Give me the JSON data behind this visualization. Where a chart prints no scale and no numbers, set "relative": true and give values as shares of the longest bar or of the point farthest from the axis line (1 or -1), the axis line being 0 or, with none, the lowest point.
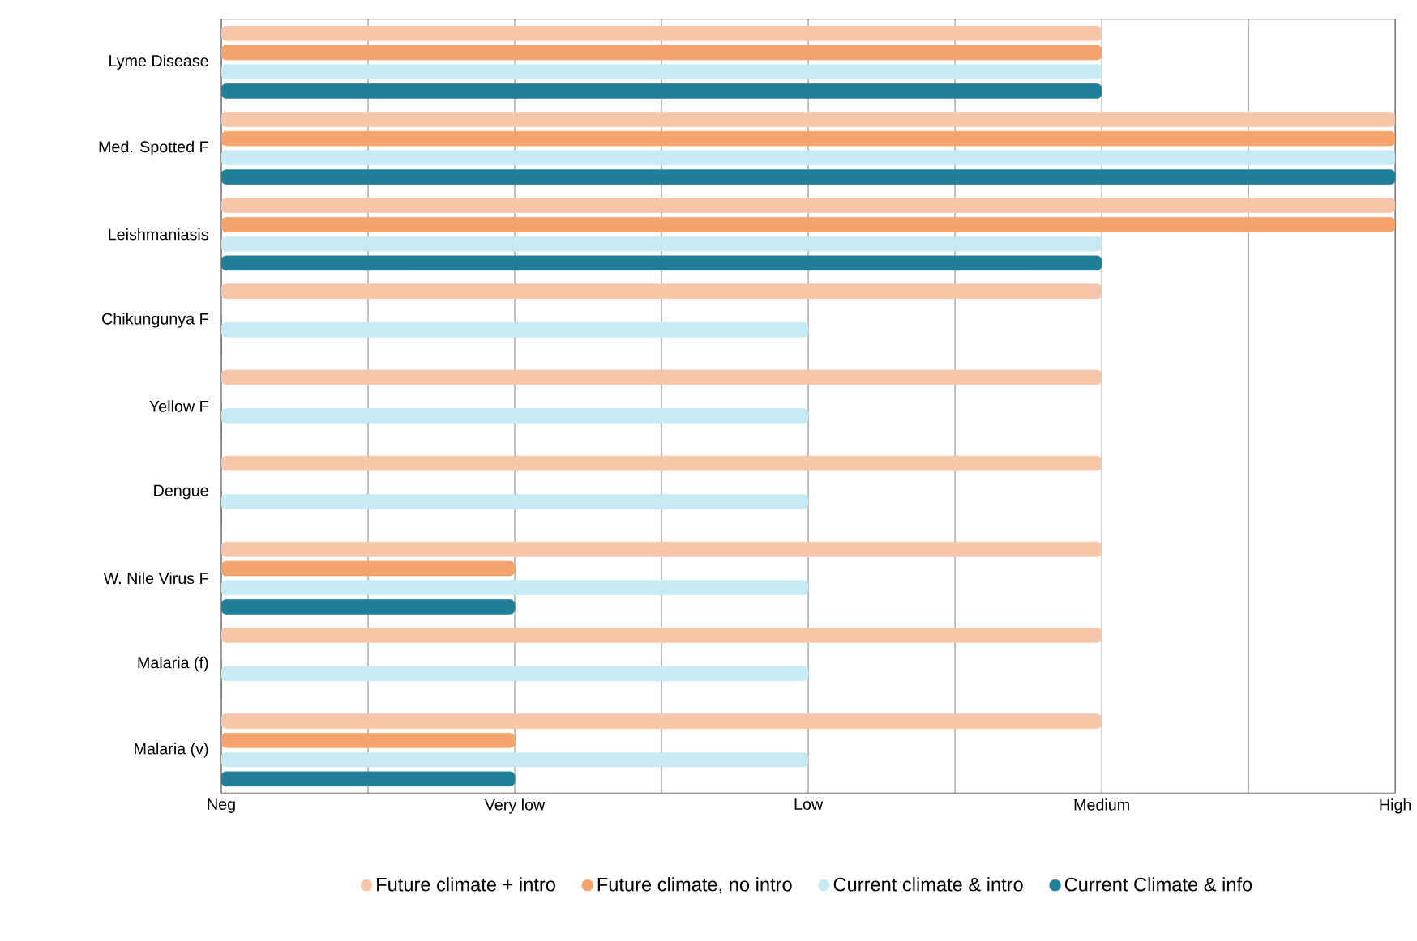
{
  "chart_data": {
    "type": "bar",
    "orientation": "horizontal",
    "relative": true,
    "categories": [
      "Lyme Disease",
      "Med. Spotted F",
      "Leishmaniasis",
      "Chikungunya F",
      "Yellow F",
      "Dengue",
      "W. Nile Virus F",
      "Malaria (f)",
      "Malaria (v)"
    ],
    "series": [
      {
        "name": "Future climate + intro",
        "color": "#f7c6a8",
        "values": [
          0.75,
          1,
          1,
          0.75,
          0.75,
          0.75,
          0.75,
          0.75,
          0.75
        ]
      },
      {
        "name": "Future climate, no intro",
        "color": "#f4a46c",
        "values": [
          0.75,
          1,
          1,
          0,
          0,
          0,
          0.25,
          0,
          0.25
        ]
      },
      {
        "name": "Current climate & intro",
        "color": "#c6ebf4",
        "values": [
          0.75,
          1,
          0.75,
          0.5,
          0.5,
          0.5,
          0.5,
          0.5,
          0.5
        ]
      },
      {
        "name": "Current Climate & info",
        "color": "#207f99",
        "values": [
          0.75,
          1,
          0.75,
          0,
          0,
          0,
          0.25,
          0,
          0.25
        ]
      }
    ],
    "annotations": [
      "Neg",
      "Very low",
      "Low",
      "Medium",
      "High"
    ],
    "grid": "x",
    "legend": "bottom"
  }
}
